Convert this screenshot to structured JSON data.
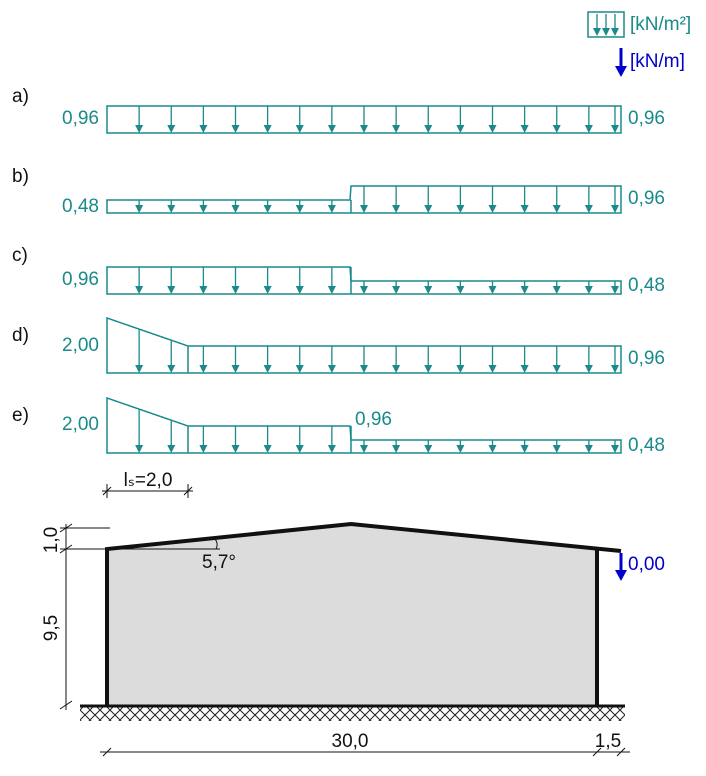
{
  "legend": {
    "area_unit": "[kN/m²]",
    "line_unit": "[kN/m]"
  },
  "cases": [
    {
      "label": "a)",
      "left": "0,96",
      "right": "0,96"
    },
    {
      "label": "b)",
      "left": "0,48",
      "right": "0,96"
    },
    {
      "label": "c)",
      "left": "0,96",
      "right": "0,48"
    },
    {
      "label": "d)",
      "left": "2,00",
      "right": "0,96"
    },
    {
      "label": "e)",
      "left": "2,00",
      "middle": "0,96",
      "right": "0,48"
    }
  ],
  "drift_length": "lₛ=2,0",
  "building": {
    "roof_height": "1,0",
    "wall_height": "9,5",
    "roof_angle": "5,7°",
    "edge_load": "0,00",
    "span": "30,0",
    "overhang": "1,5"
  }
}
